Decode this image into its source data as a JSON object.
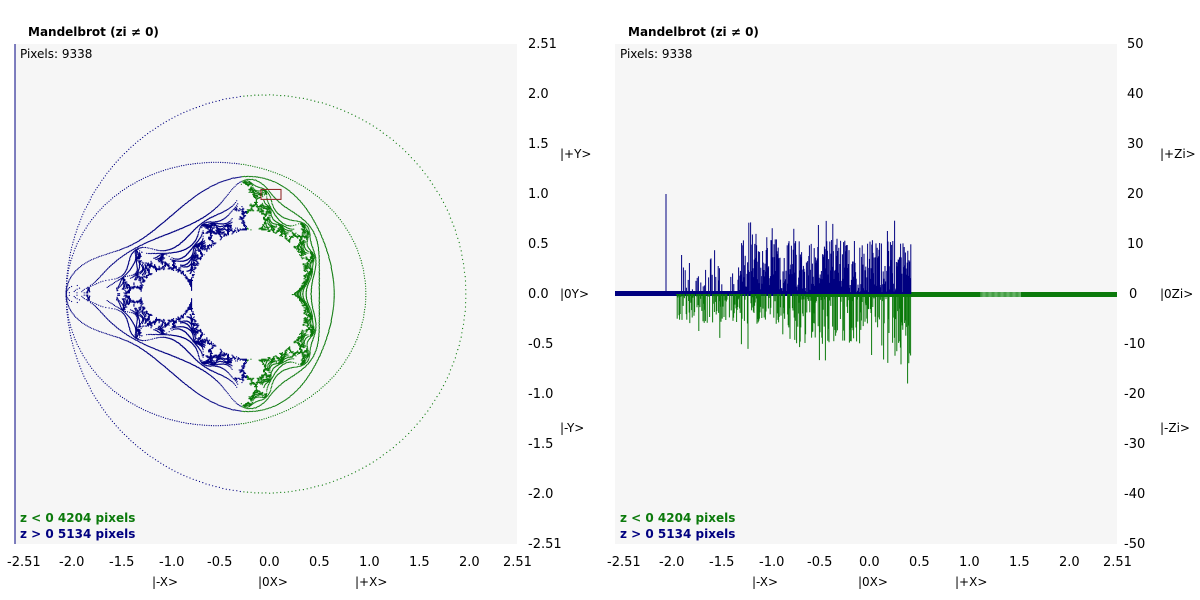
{
  "colors": {
    "positive": "#000080",
    "negative": "#0b7a0b",
    "panel": "#f6f6f6",
    "box": "#8b1a1a"
  },
  "chart_data": [
    {
      "type": "scatter",
      "title": "Mandelbrot (zi ≠ 0)",
      "pixels_label": "Pixels: 9338",
      "xlim": [
        -2.51,
        2.51
      ],
      "ylim": [
        -2.51,
        2.51
      ],
      "x_ticks": [
        "-2.51",
        "-2.0",
        "-1.5",
        "-1.0",
        "-0.5",
        "0.0",
        "0.5",
        "1.0",
        "1.5",
        "2.0",
        "2.51"
      ],
      "y_ticks": [
        "2.51",
        "2.0",
        "1.5",
        "1.0",
        "0.5",
        "0.0",
        "-0.5",
        "-1.0",
        "-1.5",
        "-2.0",
        "-2.51"
      ],
      "x_axis_labels": [
        "|-X>",
        "|0X>",
        "|+X>"
      ],
      "y_axis_labels": [
        "|+Y>",
        "|0Y>",
        "|-Y>"
      ],
      "legend": [
        "z < 0  4204 pixels",
        "z > 0  5134 pixels"
      ],
      "series": [
        {
          "name": "z < 0",
          "count": 4204,
          "color": "green"
        },
        {
          "name": "z > 0",
          "count": 5134,
          "color": "navy"
        }
      ],
      "highlight_box": {
        "x": [
          -0.05,
          0.15
        ],
        "y": [
          0.95,
          1.05
        ]
      }
    },
    {
      "type": "bar",
      "title": "Mandelbrot (zi ≠ 0)",
      "pixels_label": "Pixels: 9338",
      "xlim": [
        -2.51,
        2.51
      ],
      "ylim": [
        -50,
        50
      ],
      "x_ticks": [
        "-2.51",
        "-2.0",
        "-1.5",
        "-1.0",
        "-0.5",
        "0.0",
        "0.5",
        "1.0",
        "1.5",
        "2.0",
        "2.51"
      ],
      "y_ticks": [
        "50",
        "40",
        "30",
        "20",
        "10",
        "0",
        "-10",
        "-20",
        "-30",
        "-40",
        "-50"
      ],
      "x_axis_labels": [
        "|-X>",
        "|0X>",
        "|+X>"
      ],
      "y_axis_labels": [
        "|+Zi>",
        "|0Zi>",
        "|-Zi>"
      ],
      "legend": [
        "z < 0  4204 pixels",
        "z > 0  5134 pixels"
      ],
      "series": [
        {
          "name": "z > 0",
          "x_range": [
            -2.51,
            0.45
          ],
          "max_value": 20,
          "color": "navy"
        },
        {
          "name": "z < 0",
          "x_range": [
            -1.9,
            2.51
          ],
          "min_value": -18,
          "color": "green"
        }
      ]
    }
  ]
}
